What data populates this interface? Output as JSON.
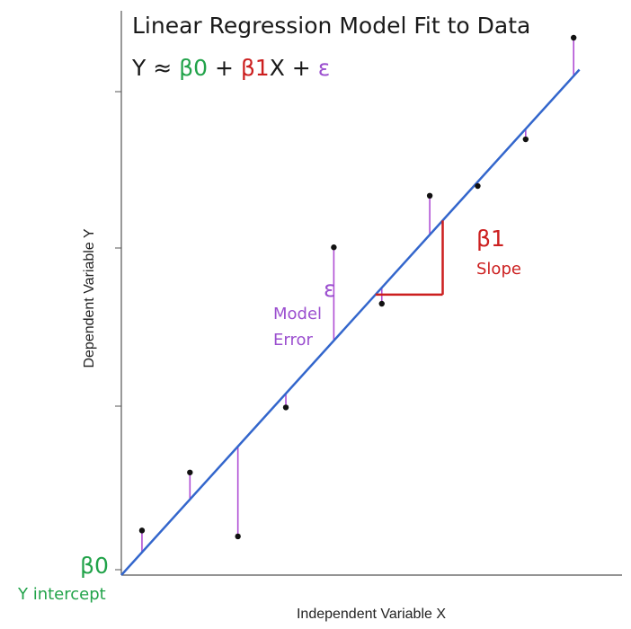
{
  "colors": {
    "axis": "#555555",
    "regression_line": "#3366cc",
    "residual": "#b04fd4",
    "point": "#111111",
    "intercept": "#22a34a",
    "slope": "#cc1f1f",
    "error": "#9b4fcf",
    "title": "#1a1a1a"
  },
  "title": "Linear Regression Model Fit to Data",
  "equation": {
    "y": "Y ≈ ",
    "b0": "β0",
    "plus1": " + ",
    "b1": "β1",
    "x": "X + ",
    "eps": "ε"
  },
  "axes": {
    "xlabel": "Independent Variable X",
    "ylabel": "Dependent Variable Y"
  },
  "annotations": {
    "intercept_symbol": "β0",
    "intercept_label": "Y intercept",
    "slope_symbol": "β1",
    "slope_label": "Slope",
    "error_symbol": "ε",
    "error_label_line1": "Model",
    "error_label_line2": "Error"
  },
  "chart_data": {
    "type": "scatter",
    "title": "Linear Regression Model Fit to Data",
    "xlabel": "Independent Variable X",
    "ylabel": "Dependent Variable Y",
    "xlim": [
      0,
      10
    ],
    "ylim": [
      0,
      10
    ],
    "grid": false,
    "points": [
      {
        "x": 0.43,
        "y": 0.83
      },
      {
        "x": 1.43,
        "y": 1.91
      },
      {
        "x": 2.43,
        "y": 0.72
      },
      {
        "x": 3.43,
        "y": 3.12
      },
      {
        "x": 4.43,
        "y": 6.1
      },
      {
        "x": 5.43,
        "y": 5.05
      },
      {
        "x": 6.43,
        "y": 7.06
      },
      {
        "x": 7.43,
        "y": 7.24
      },
      {
        "x": 8.43,
        "y": 8.11
      },
      {
        "x": 9.43,
        "y": 10.0
      }
    ],
    "regression_line": {
      "intercept": 0,
      "slope": 0.985
    },
    "slope_triangle": {
      "x_start": 5.3,
      "x_end": 6.7
    }
  }
}
